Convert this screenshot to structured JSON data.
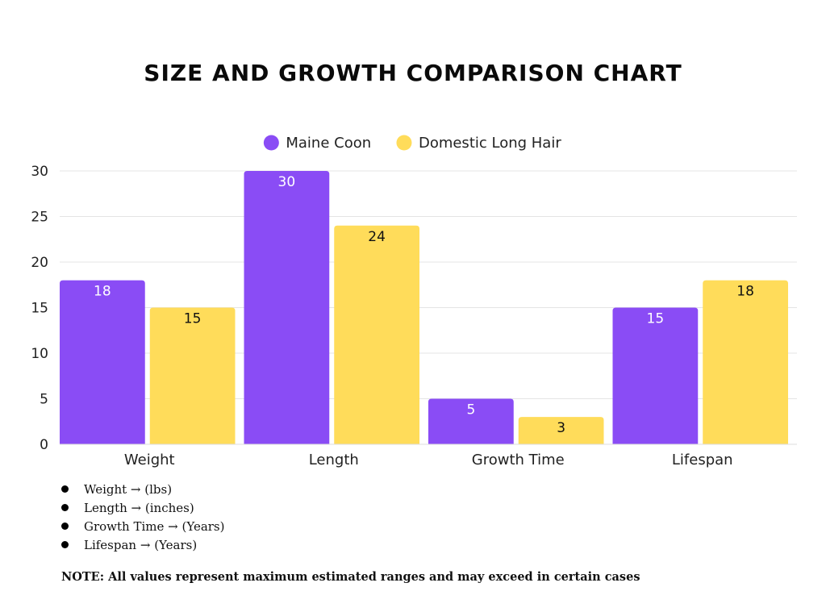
{
  "chart_data": {
    "type": "bar",
    "title": "SIZE AND GROWTH COMPARISON CHART",
    "categories": [
      "Weight",
      "Length",
      "Growth Time",
      "Lifespan"
    ],
    "series": [
      {
        "name": "Maine Coon",
        "values": [
          18,
          30,
          5,
          15
        ],
        "color": "#8a4cf5",
        "label_color": "#ffffff"
      },
      {
        "name": "Domestic Long Hair",
        "values": [
          15,
          24,
          3,
          18
        ],
        "color": "#ffdc5a",
        "label_color": "#111111"
      }
    ],
    "yticks": [
      "0",
      "5",
      "10",
      "15",
      "20",
      "25",
      "30"
    ],
    "ylim": [
      0,
      30
    ],
    "xlabel": "",
    "ylabel": "",
    "grid": true,
    "legend": "top-center"
  },
  "notes": [
    "Weight → (lbs)",
    "Length → (inches)",
    "Growth Time → (Years)",
    "Lifespan → (Years)"
  ],
  "footnote": "NOTE: All values represent maximum estimated ranges and may exceed in certain cases"
}
